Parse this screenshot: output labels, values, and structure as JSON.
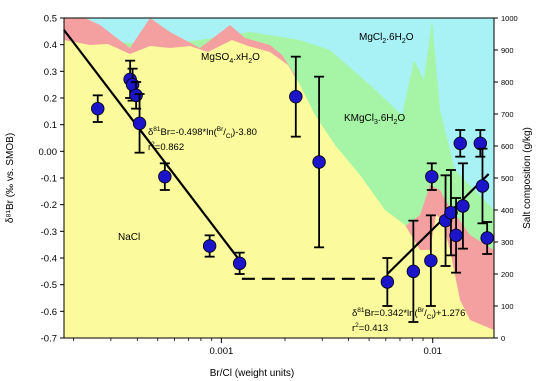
{
  "chart_data": {
    "type": "scatter",
    "x_scale": "log",
    "xlim": [
      0.00018,
      0.0195
    ],
    "ylim": [
      -0.7,
      0.5
    ],
    "y2lim": [
      0,
      1000
    ],
    "xlabel": "Br/Cl (weight units)",
    "ylabel": "δ⁸¹Br (‰ vs. SMOB)",
    "y2label": "Salt composition (g/kg)",
    "x_ticks": [
      {
        "v": 0.001,
        "label": "0.001"
      },
      {
        "v": 0.01,
        "label": "0.01"
      }
    ],
    "y_ticks": [
      0.5,
      0.4,
      0.3,
      0.2,
      0.1,
      0.0,
      -0.1,
      -0.2,
      -0.3,
      -0.4,
      -0.5,
      -0.6,
      -0.7
    ],
    "y_tick_labels": [
      "0.5",
      "0.4",
      "0.3",
      "0.2",
      "0.1",
      "0.00",
      "-0.1",
      "-0.2",
      "-0.3",
      "-0.4",
      "-0.5",
      "-0.6",
      "-0.7"
    ],
    "y2_ticks": [
      0,
      100,
      200,
      300,
      400,
      500,
      600,
      700,
      800,
      900,
      1000
    ],
    "salt_fields": [
      {
        "name": "NaCl",
        "color": "#fbfb9d"
      },
      {
        "name": "MgSO4·xH2O",
        "color": "#f5a0a0"
      },
      {
        "name": "KMgCl3·6H2O",
        "color": "#a6f5a6"
      },
      {
        "name": "MgCl2·6H2O",
        "color": "#a8f2f6"
      }
    ],
    "labels": {
      "nacl": "NaCl",
      "mgso4_main": "MgSO",
      "mgso4_sub": "4",
      "mgso4_tail": ".xH",
      "mgso4_sub2": "2",
      "mgso4_end": "O",
      "kmgcl_main": "KMgCl",
      "kmgcl_sub": "3",
      "kmgcl_tail": ".6H",
      "kmgcl_sub2": "2",
      "kmgcl_end": "O",
      "mgcl_main": "MgCl",
      "mgcl_sub": "2",
      "mgcl_tail": ".6H",
      "mgcl_sub2": "2",
      "mgcl_end": "O"
    },
    "series": [
      {
        "marker": "circle",
        "color": "#1c14c8",
        "points": [
          {
            "x": 0.00026,
            "y": 0.16,
            "err": 0.05
          },
          {
            "x": 0.00037,
            "y": 0.27,
            "err": 0.07
          },
          {
            "x": 0.00038,
            "y": 0.25,
            "err": 0.06
          },
          {
            "x": 0.000395,
            "y": 0.21,
            "err": 0.05
          },
          {
            "x": 0.00041,
            "y": 0.105,
            "err": 0.11
          },
          {
            "x": 0.00054,
            "y": -0.095,
            "err": 0.05
          },
          {
            "x": 0.00088,
            "y": -0.355,
            "err": 0.04
          },
          {
            "x": 0.00122,
            "y": -0.42,
            "err": 0.04
          },
          {
            "x": 0.00225,
            "y": 0.205,
            "err": 0.15
          },
          {
            "x": 0.0029,
            "y": -0.04,
            "err": 0.32
          },
          {
            "x": 0.0061,
            "y": -0.49,
            "err": 0.09
          },
          {
            "x": 0.0081,
            "y": -0.45,
            "err": 0.19
          },
          {
            "x": 0.0098,
            "y": -0.41,
            "err": 0.17
          },
          {
            "x": 0.0099,
            "y": -0.095,
            "err": 0.05
          },
          {
            "x": 0.0115,
            "y": -0.26,
            "err": 0.17
          },
          {
            "x": 0.0122,
            "y": -0.23,
            "err": 0.16
          },
          {
            "x": 0.0129,
            "y": -0.315,
            "err": 0.14
          },
          {
            "x": 0.0135,
            "y": 0.03,
            "err": 0.05
          },
          {
            "x": 0.0139,
            "y": -0.205,
            "err": 0.16
          },
          {
            "x": 0.0168,
            "y": 0.03,
            "err": 0.05
          },
          {
            "x": 0.0172,
            "y": -0.13,
            "err": 0.14
          },
          {
            "x": 0.0181,
            "y": -0.325,
            "err": 0.06
          }
        ]
      }
    ],
    "fit_lines": [
      {
        "name": "fit-1",
        "x": [
          0.00018,
          0.00125
        ],
        "y": [
          0.455,
          -0.42
        ],
        "style": "solid"
      },
      {
        "name": "plateau",
        "x": [
          0.00125,
          0.0061
        ],
        "y": [
          -0.478,
          -0.478
        ],
        "style": "dashed"
      },
      {
        "name": "fit-2",
        "x": [
          0.0061,
          0.0184
        ],
        "y": [
          -0.46,
          -0.085
        ],
        "style": "solid"
      }
    ],
    "annotations": {
      "eq1_a": "δ",
      "eq1_b": "81",
      "eq1_c": "Br=-0.498*ln(",
      "eq1_d": "Br",
      "eq1_e": "/",
      "eq1_f": "Cl",
      "eq1_g": ")-3.80",
      "r1_a": "r",
      "r1_b": "2",
      "r1_c": "=0.862",
      "eq2_a": "δ",
      "eq2_b": "81",
      "eq2_c": "Br=0.342*ln(",
      "eq2_d": "Br",
      "eq2_e": "/",
      "eq2_f": "Cl",
      "eq2_g": ")+1.276",
      "r2_a": "r",
      "r2_b": "2",
      "r2_c": "=0.413"
    }
  }
}
